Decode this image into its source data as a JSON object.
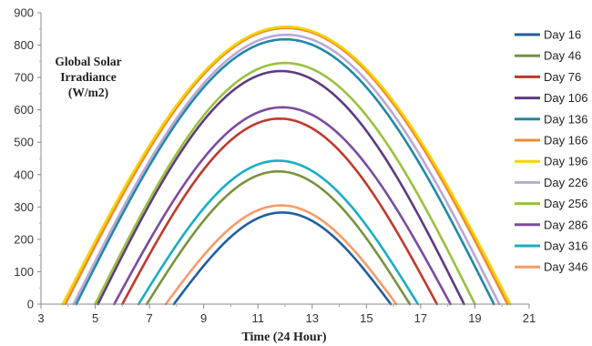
{
  "chart_data": {
    "type": "line",
    "title": "",
    "annotation": [
      "Global Solar",
      "Irradiance",
      "(W/m2)"
    ],
    "xlabel": "Time (24 Hour)",
    "ylabel": "",
    "xlim": [
      3,
      21
    ],
    "ylim": [
      0,
      900
    ],
    "xticks": [
      "3",
      "5",
      "7",
      "9",
      "11",
      "13",
      "15",
      "17",
      "19",
      "21"
    ],
    "yticks": [
      "0",
      "100",
      "200",
      "300",
      "400",
      "500",
      "600",
      "700",
      "800",
      "900"
    ],
    "legend_position": "right",
    "grid": false,
    "series": [
      {
        "name": "Day 16",
        "color": "#1f5f9e",
        "sunrise": 7.9,
        "sunset": 15.9,
        "peak": 283
      },
      {
        "name": "Day 46",
        "color": "#77933c",
        "sunrise": 6.9,
        "sunset": 16.6,
        "peak": 410
      },
      {
        "name": "Day 76",
        "color": "#c0392b",
        "sunrise": 6.0,
        "sunset": 17.6,
        "peak": 573
      },
      {
        "name": "Day 106",
        "color": "#5e3a80",
        "sunrise": 5.1,
        "sunset": 18.6,
        "peak": 720
      },
      {
        "name": "Day 136",
        "color": "#2088a6",
        "sunrise": 4.3,
        "sunset": 19.7,
        "peak": 818
      },
      {
        "name": "Day 166",
        "color": "#ee8a35",
        "sunrise": 3.9,
        "sunset": 20.2,
        "peak": 853
      },
      {
        "name": "Day 196",
        "color": "#f5d300",
        "sunrise": 3.8,
        "sunset": 20.3,
        "peak": 857
      },
      {
        "name": "Day 226",
        "color": "#b8a9d6",
        "sunrise": 4.2,
        "sunset": 19.9,
        "peak": 832
      },
      {
        "name": "Day 256",
        "color": "#9ac13f",
        "sunrise": 5.0,
        "sunset": 19.0,
        "peak": 745
      },
      {
        "name": "Day 286",
        "color": "#7b4b9f",
        "sunrise": 5.7,
        "sunset": 18.1,
        "peak": 608
      },
      {
        "name": "Day 316",
        "color": "#18aec4",
        "sunrise": 6.6,
        "sunset": 16.9,
        "peak": 443
      },
      {
        "name": "Day 346",
        "color": "#f79a6b",
        "sunrise": 7.6,
        "sunset": 16.1,
        "peak": 305
      }
    ]
  }
}
